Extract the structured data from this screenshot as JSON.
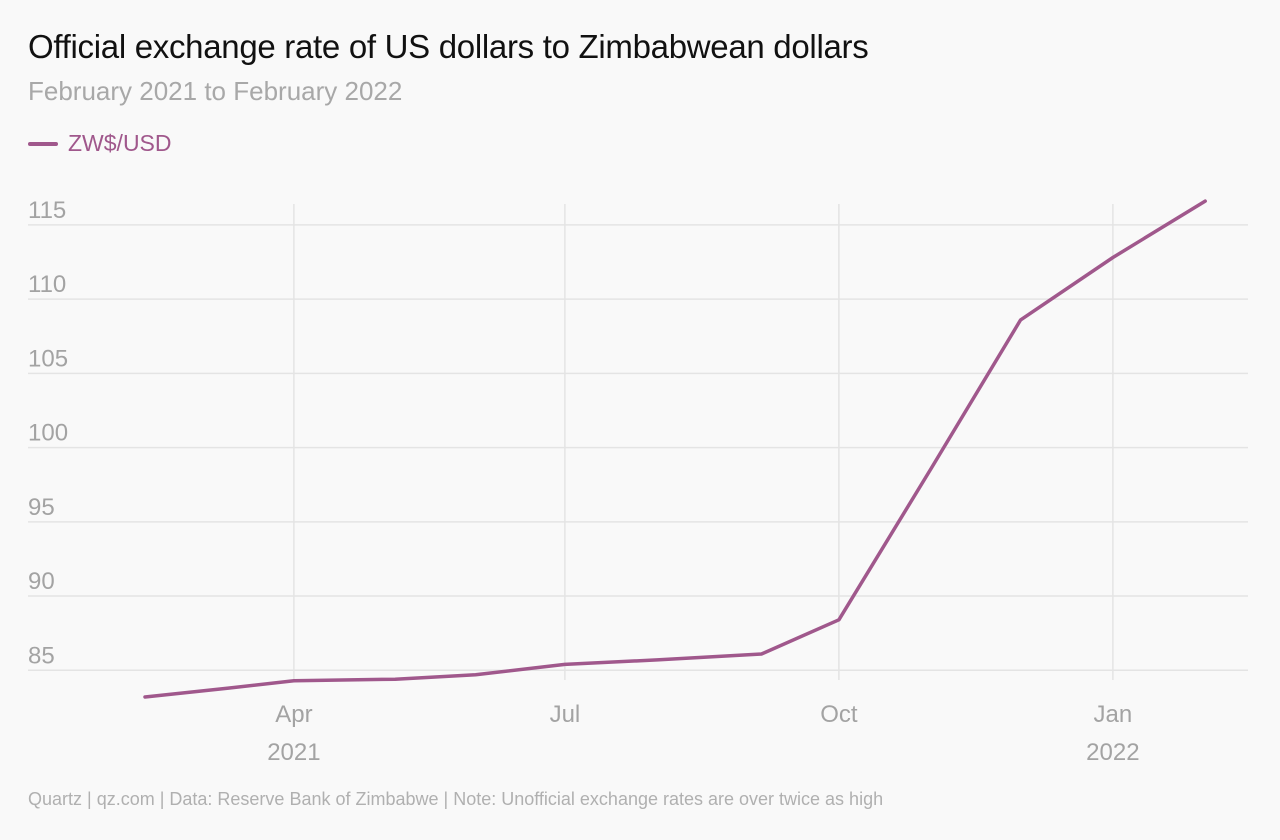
{
  "header": {
    "title": "Official exchange rate of US dollars to Zimbabwean dollars",
    "subtitle": "February 2021 to February 2022"
  },
  "legend": {
    "label": "ZW$/USD",
    "color": "#a0588c"
  },
  "footer": {
    "source": "Quartz | qz.com | Data: Reserve Bank of Zimbabwe | Note: Unofficial exchange rates are over twice as high"
  },
  "colors": {
    "line": "#a0588c",
    "grid": "#e4e4e4",
    "tick_text": "#a3a3a3",
    "background": "#f9f9f9"
  },
  "chart_data": {
    "type": "line",
    "title": "Official exchange rate of US dollars to Zimbabwean dollars",
    "subtitle": "February 2021 to February 2022",
    "xlabel": "",
    "ylabel": "",
    "x_range": [
      "2021-02-10",
      "2022-02-10"
    ],
    "ylim": [
      83,
      116
    ],
    "y_ticks": [
      85,
      90,
      95,
      100,
      105,
      110,
      115
    ],
    "x_ticks": [
      {
        "date": "2021-04-01",
        "label": "Apr",
        "sublabel": "2021"
      },
      {
        "date": "2021-07-01",
        "label": "Jul",
        "sublabel": ""
      },
      {
        "date": "2021-10-01",
        "label": "Oct",
        "sublabel": ""
      },
      {
        "date": "2022-01-01",
        "label": "Jan",
        "sublabel": "2022"
      }
    ],
    "grid": true,
    "legend_position": "top-left",
    "series": [
      {
        "name": "ZW$/USD",
        "color": "#a0588c",
        "points": [
          {
            "x": "2021-02-10",
            "y": 83.2
          },
          {
            "x": "2021-03-10",
            "y": 83.8
          },
          {
            "x": "2021-04-01",
            "y": 84.3
          },
          {
            "x": "2021-05-05",
            "y": 84.4
          },
          {
            "x": "2021-06-01",
            "y": 84.7
          },
          {
            "x": "2021-07-01",
            "y": 85.4
          },
          {
            "x": "2021-08-01",
            "y": 85.7
          },
          {
            "x": "2021-09-05",
            "y": 86.1
          },
          {
            "x": "2021-10-01",
            "y": 88.4
          },
          {
            "x": "2021-11-01",
            "y": 98.6
          },
          {
            "x": "2021-12-01",
            "y": 108.6
          },
          {
            "x": "2022-01-01",
            "y": 112.8
          },
          {
            "x": "2022-02-01",
            "y": 116.6
          }
        ]
      }
    ]
  }
}
